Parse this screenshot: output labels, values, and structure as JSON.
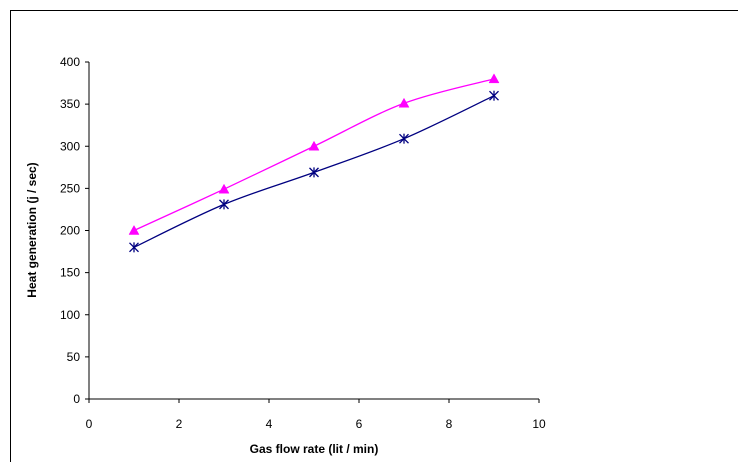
{
  "chart_data": {
    "type": "line",
    "title": "",
    "xlabel": "Gas flow rate (lit / min)",
    "ylabel": "Heat generation (j / sec)",
    "xlim": [
      0,
      10
    ],
    "ylim": [
      0,
      400
    ],
    "x_ticks": [
      0,
      2,
      4,
      6,
      8,
      10
    ],
    "y_ticks": [
      0,
      50,
      100,
      150,
      200,
      250,
      300,
      350,
      400
    ],
    "grid": false,
    "legend": "none",
    "series": [
      {
        "color": "#ff00ff",
        "marker": "triangle",
        "smooth": true,
        "x": [
          1,
          3,
          5,
          7,
          9
        ],
        "y": [
          200,
          249,
          300,
          351,
          380
        ]
      },
      {
        "color": "#000080",
        "marker": "asterisk",
        "smooth": true,
        "x": [
          1,
          3,
          5,
          7,
          9
        ],
        "y": [
          180,
          231,
          269,
          309,
          360
        ]
      }
    ]
  }
}
